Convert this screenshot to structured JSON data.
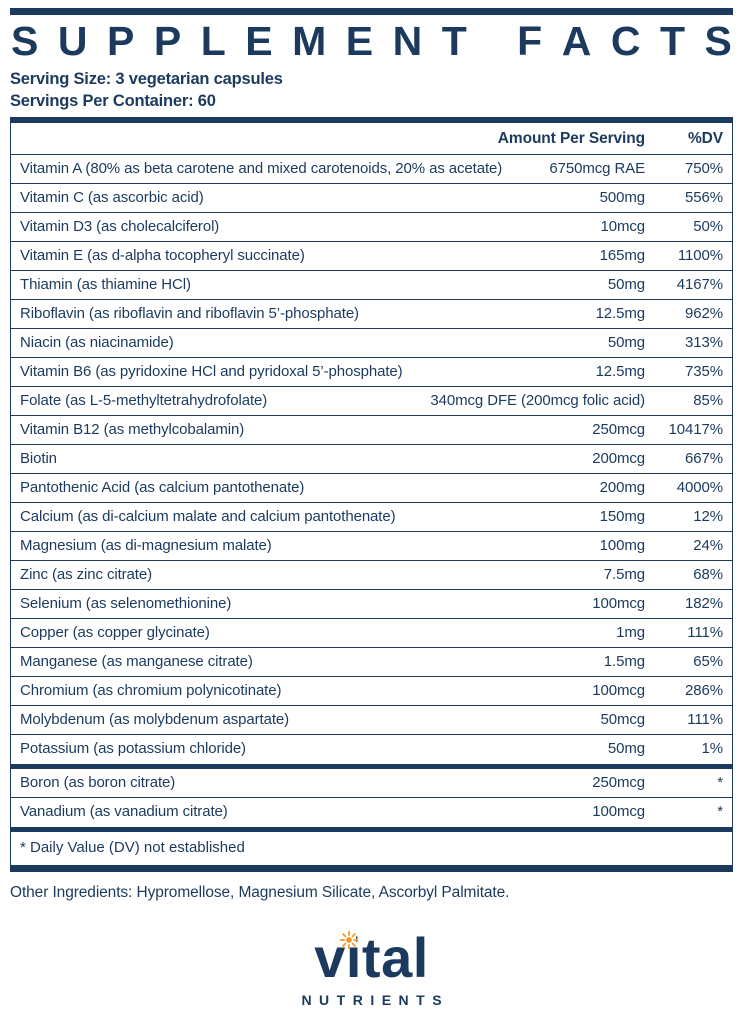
{
  "colors": {
    "ink": "#1b3a5e",
    "sun": "#f7941e"
  },
  "title": "Supplement Facts",
  "serving": {
    "size": "Serving Size: 3 vegetarian capsules",
    "per_container": "Servings Per Container: 60"
  },
  "table": {
    "headers": {
      "amount": "Amount Per Serving",
      "dv": "%DV"
    },
    "rows": [
      {
        "name": "Vitamin A (80% as beta carotene and mixed carotenoids, 20% as acetate)",
        "amount": "6750mcg RAE",
        "dv": "750%"
      },
      {
        "name": "Vitamin C (as ascorbic acid)",
        "amount": "500mg",
        "dv": "556%"
      },
      {
        "name": "Vitamin D3 (as cholecalciferol)",
        "amount": "10mcg",
        "dv": "50%"
      },
      {
        "name": "Vitamin E (as d-alpha tocopheryl succinate)",
        "amount": "165mg",
        "dv": "1100%"
      },
      {
        "name": "Thiamin (as thiamine HCl)",
        "amount": "50mg",
        "dv": "4167%"
      },
      {
        "name": "Riboflavin (as riboflavin and riboflavin 5’-phosphate)",
        "amount": "12.5mg",
        "dv": "962%"
      },
      {
        "name": "Niacin (as niacinamide)",
        "amount": "50mg",
        "dv": "313%"
      },
      {
        "name": "Vitamin B6 (as pyridoxine HCl and pyridoxal 5’-phosphate)",
        "amount": "12.5mg",
        "dv": "735%"
      },
      {
        "name": "Folate (as L-5-methyltetrahydrofolate)",
        "amount": "340mcg DFE (200mcg folic acid)",
        "dv": "85%"
      },
      {
        "name": "Vitamin B12 (as methylcobalamin)",
        "amount": "250mcg",
        "dv": "10417%"
      },
      {
        "name": "Biotin",
        "amount": "200mcg",
        "dv": "667%"
      },
      {
        "name": "Pantothenic Acid (as calcium pantothenate)",
        "amount": "200mg",
        "dv": "4000%"
      },
      {
        "name": "Calcium (as di-calcium malate and calcium pantothenate)",
        "amount": "150mg",
        "dv": "12%"
      },
      {
        "name": "Magnesium (as di-magnesium malate)",
        "amount": "100mg",
        "dv": "24%"
      },
      {
        "name": "Zinc (as zinc citrate)",
        "amount": "7.5mg",
        "dv": "68%"
      },
      {
        "name": "Selenium (as selenomethionine)",
        "amount": "100mcg",
        "dv": "182%"
      },
      {
        "name": "Copper (as copper glycinate)",
        "amount": "1mg",
        "dv": "111%"
      },
      {
        "name": "Manganese (as manganese citrate)",
        "amount": "1.5mg",
        "dv": "65%"
      },
      {
        "name": "Chromium (as chromium polynicotinate)",
        "amount": "100mcg",
        "dv": "286%"
      },
      {
        "name": "Molybdenum (as molybdenum aspartate)",
        "amount": "50mcg",
        "dv": "111%"
      },
      {
        "name": "Potassium (as potassium chloride)",
        "amount": "50mg",
        "dv": "1%"
      }
    ],
    "no_dv_rows": [
      {
        "name": "Boron (as boron citrate)",
        "amount": "250mcg",
        "dv": "*"
      },
      {
        "name": "Vanadium (as vanadium citrate)",
        "amount": "100mcg",
        "dv": "*"
      }
    ],
    "footnote": "* Daily Value (DV) not established"
  },
  "other_ingredients": "Other Ingredients: Hypromellose, Magnesium Silicate, Ascorbyl Palmitate.",
  "logo": {
    "brand": "vital",
    "sub": "NUTRIENTS"
  }
}
